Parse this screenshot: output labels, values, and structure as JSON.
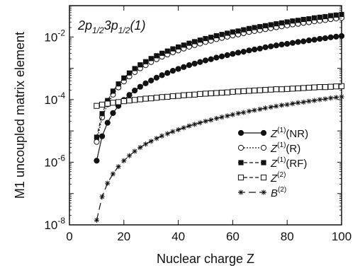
{
  "chart_data": {
    "type": "scatter",
    "annotation": "2p1/23p1/2(1)",
    "annotation_parts": {
      "a": "2p",
      "a_sub": "1/2",
      "b": "3p",
      "b_sub": "1/2",
      "c": "(1)"
    },
    "xlabel": "Nuclear charge Z",
    "ylabel": "M1 uncoupled matrix element",
    "xlim": [
      0,
      100
    ],
    "ylim_log10": [
      -8,
      -1
    ],
    "yscale": "log",
    "grid": false,
    "legend_position": "right",
    "x_ticks": [
      "0",
      "20",
      "40",
      "60",
      "80",
      "100"
    ],
    "y_ticks": [
      {
        "exp": -8,
        "base": "10",
        "sup": "-8"
      },
      {
        "exp": -6,
        "base": "10",
        "sup": "-6"
      },
      {
        "exp": -4,
        "base": "10",
        "sup": "-4"
      },
      {
        "exp": -2,
        "base": "10",
        "sup": "-2"
      }
    ],
    "x": [
      10,
      12,
      14,
      16,
      18,
      20,
      22,
      24,
      26,
      28,
      30,
      32,
      34,
      36,
      38,
      40,
      42,
      44,
      46,
      48,
      50,
      52,
      54,
      56,
      58,
      60,
      62,
      64,
      66,
      68,
      70,
      72,
      74,
      76,
      78,
      80,
      82,
      84,
      86,
      88,
      90,
      92,
      94,
      96,
      98,
      100
    ],
    "series": [
      {
        "key": "nr",
        "legend_main": "Z",
        "legend_sup": "(1)",
        "legend_suffix": "(NR)",
        "marker": "filled-circle",
        "line": "solid",
        "y_log10": [
          -5.95,
          -5.17,
          -4.74,
          -4.43,
          -4.2,
          -4.01,
          -3.85,
          -3.71,
          -3.59,
          -3.48,
          -3.39,
          -3.3,
          -3.22,
          -3.15,
          -3.08,
          -3.02,
          -2.96,
          -2.9,
          -2.85,
          -2.8,
          -2.75,
          -2.71,
          -2.66,
          -2.62,
          -2.58,
          -2.54,
          -2.5,
          -2.47,
          -2.43,
          -2.4,
          -2.37,
          -2.33,
          -2.3,
          -2.27,
          -2.24,
          -2.22,
          -2.19,
          -2.16,
          -2.14,
          -2.11,
          -2.09,
          -2.06,
          -2.04,
          -2.01,
          -1.99,
          -1.97
        ]
      },
      {
        "key": "r",
        "legend_main": "Z",
        "legend_sup": "(1)",
        "legend_suffix": "(R)",
        "marker": "open-circle",
        "line": "dotted",
        "y_log10": [
          -5.35,
          -4.57,
          -4.15,
          -3.84,
          -3.61,
          -3.42,
          -3.26,
          -3.12,
          -3.0,
          -2.9,
          -2.8,
          -2.71,
          -2.63,
          -2.56,
          -2.49,
          -2.43,
          -2.37,
          -2.31,
          -2.26,
          -2.21,
          -2.16,
          -2.12,
          -2.07,
          -2.03,
          -1.99,
          -1.95,
          -1.92,
          -1.88,
          -1.84,
          -1.81,
          -1.78,
          -1.75,
          -1.72,
          -1.69,
          -1.66,
          -1.63,
          -1.6,
          -1.58,
          -1.55,
          -1.53,
          -1.5,
          -1.48,
          -1.46,
          -1.43,
          -1.41,
          -1.39
        ]
      },
      {
        "key": "rf",
        "legend_main": "Z",
        "legend_sup": "(1)",
        "legend_suffix": "(RF)",
        "marker": "filled-square",
        "line": "dashed",
        "y_log10": [
          -5.2,
          -4.45,
          -4.03,
          -3.73,
          -3.5,
          -3.31,
          -3.15,
          -3.01,
          -2.89,
          -2.79,
          -2.69,
          -2.6,
          -2.52,
          -2.45,
          -2.38,
          -2.32,
          -2.26,
          -2.2,
          -2.15,
          -2.1,
          -2.05,
          -2.01,
          -1.96,
          -1.92,
          -1.88,
          -1.84,
          -1.81,
          -1.77,
          -1.73,
          -1.7,
          -1.67,
          -1.64,
          -1.61,
          -1.58,
          -1.55,
          -1.52,
          -1.49,
          -1.47,
          -1.44,
          -1.42,
          -1.39,
          -1.37,
          -1.35,
          -1.32,
          -1.3,
          -1.28
        ]
      },
      {
        "key": "z2",
        "legend_main": "Z",
        "legend_sup": "(2)",
        "legend_suffix": "",
        "marker": "open-square",
        "line": "dashed",
        "y_log10": [
          -4.2,
          -4.16,
          -4.13,
          -4.1,
          -4.08,
          -4.05,
          -4.03,
          -4.01,
          -3.99,
          -3.97,
          -3.96,
          -3.94,
          -3.92,
          -3.91,
          -3.89,
          -3.88,
          -3.86,
          -3.85,
          -3.84,
          -3.82,
          -3.81,
          -3.8,
          -3.79,
          -3.78,
          -3.77,
          -3.75,
          -3.74,
          -3.73,
          -3.72,
          -3.71,
          -3.7,
          -3.69,
          -3.68,
          -3.67,
          -3.67,
          -3.66,
          -3.65,
          -3.64,
          -3.63,
          -3.62,
          -3.61,
          -3.6,
          -3.6,
          -3.59,
          -3.58,
          -3.57
        ]
      },
      {
        "key": "b2",
        "legend_main": "B",
        "legend_sup": "(2)",
        "legend_suffix": "",
        "marker": "star",
        "line": "long-dash",
        "y_log10": [
          -7.85,
          -7.1,
          -6.67,
          -6.37,
          -6.14,
          -5.95,
          -5.79,
          -5.65,
          -5.53,
          -5.42,
          -5.33,
          -5.24,
          -5.16,
          -5.09,
          -5.02,
          -4.96,
          -4.9,
          -4.84,
          -4.79,
          -4.74,
          -4.69,
          -4.65,
          -4.6,
          -4.56,
          -4.52,
          -4.48,
          -4.44,
          -4.41,
          -4.37,
          -4.34,
          -4.31,
          -4.27,
          -4.24,
          -4.21,
          -4.18,
          -4.16,
          -4.13,
          -4.1,
          -4.08,
          -4.05,
          -4.03,
          -4.0,
          -3.98,
          -3.95,
          -3.93,
          -3.91
        ]
      }
    ]
  }
}
